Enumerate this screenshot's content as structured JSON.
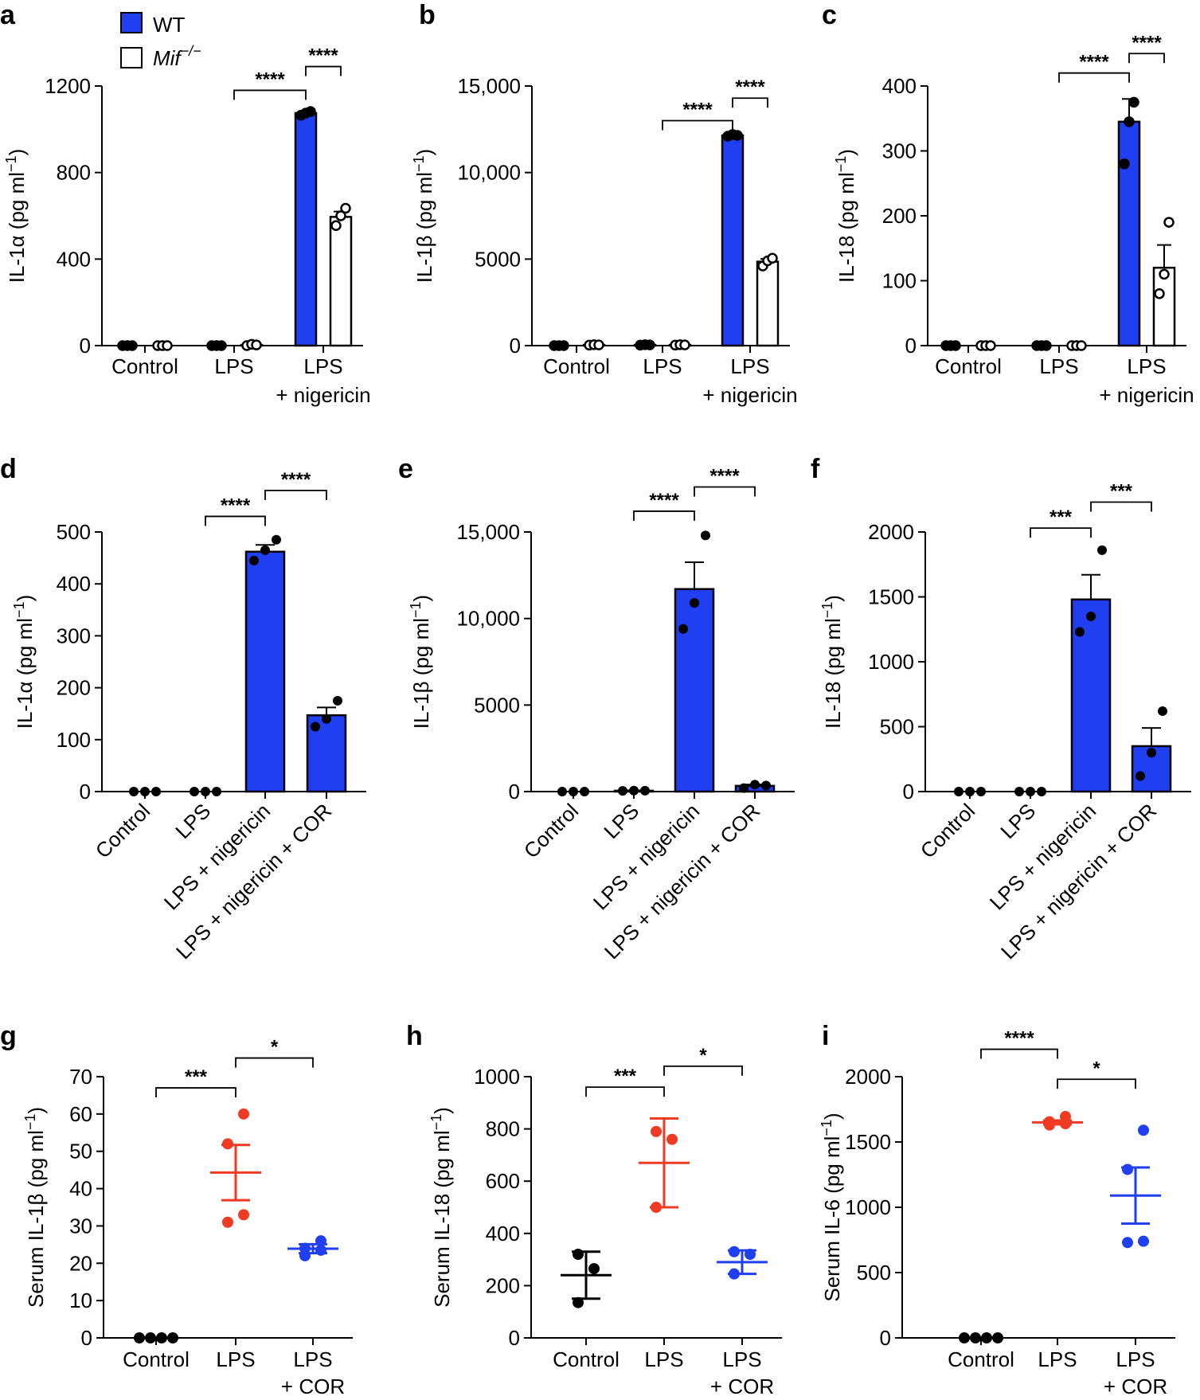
{
  "legend": {
    "entries": [
      {
        "label": "WT",
        "fill": "#1f3ff0"
      },
      {
        "label": "Mif",
        "superscript": "−/−",
        "fill": "#ffffff"
      }
    ]
  },
  "colors": {
    "blue": "#1f3ff0",
    "red": "#ef3a24",
    "black": "#000000"
  },
  "chart_data": [
    {
      "panel": "a",
      "type": "bar",
      "ylabel": "IL-1α (pg ml",
      "ylabel_sup": "−1",
      "ylabel_end": ")",
      "ylim": [
        0,
        1200
      ],
      "yticks": [
        0,
        400,
        800,
        1200
      ],
      "ytick_labels": [
        "0",
        "400",
        "800",
        "1200"
      ],
      "groups": [
        {
          "label": [
            "Control"
          ],
          "pair": true
        },
        {
          "label": [
            "LPS"
          ],
          "pair": true
        },
        {
          "label": [
            "LPS",
            "+ nigericin"
          ],
          "pair": true
        }
      ],
      "series": [
        {
          "name": "WT",
          "values": [
            0,
            0,
            1075
          ],
          "errors": [
            0,
            0,
            6
          ],
          "points": [
            [
              0,
              0,
              0
            ],
            [
              0,
              0,
              0
            ],
            [
              1065,
              1075,
              1082
            ]
          ]
        },
        {
          "name": "Mif−/−",
          "values": [
            0,
            3,
            595
          ],
          "errors": [
            0,
            2,
            25
          ],
          "points": [
            [
              0,
              0,
              0
            ],
            [
              0,
              6,
              3
            ],
            [
              555,
              600,
              635
            ]
          ]
        }
      ],
      "significance": [
        {
          "from": [
            1,
            0.5
          ],
          "to": [
            2,
            0
          ],
          "label": "****",
          "level": 1180
        },
        {
          "from": [
            2,
            0
          ],
          "to": [
            2,
            1
          ],
          "label": "****",
          "level": 1290
        }
      ]
    },
    {
      "panel": "b",
      "type": "bar",
      "ylabel": "IL-1β (pg ml",
      "ylabel_sup": "−1",
      "ylabel_end": ")",
      "ylim": [
        0,
        15000
      ],
      "yticks": [
        0,
        5000,
        10000,
        15000
      ],
      "ytick_labels": [
        "0",
        "5000",
        "10,000",
        "15,000"
      ],
      "groups": [
        {
          "label": [
            "Control"
          ],
          "pair": true
        },
        {
          "label": [
            "LPS"
          ],
          "pair": true
        },
        {
          "label": [
            "LPS",
            "+ nigericin"
          ],
          "pair": true
        }
      ],
      "series": [
        {
          "name": "WT",
          "values": [
            0,
            40,
            12150
          ],
          "errors": [
            0,
            10,
            60
          ],
          "points": [
            [
              0,
              0,
              0
            ],
            [
              30,
              50,
              40
            ],
            [
              12100,
              12200,
              12150
            ]
          ]
        },
        {
          "name": "Mif−/−",
          "values": [
            40,
            40,
            4850
          ],
          "errors": [
            0,
            10,
            160
          ],
          "points": [
            [
              30,
              50,
              40
            ],
            [
              30,
              50,
              40
            ],
            [
              4600,
              4900,
              5050
            ]
          ]
        }
      ],
      "significance": [
        {
          "from": [
            1,
            0.5
          ],
          "to": [
            2,
            0
          ],
          "label": "****",
          "level": 13000
        },
        {
          "from": [
            2,
            0
          ],
          "to": [
            2,
            1
          ],
          "label": "****",
          "level": 14300
        }
      ]
    },
    {
      "panel": "c",
      "type": "bar",
      "ylabel": "IL-18 (pg ml",
      "ylabel_sup": "−1",
      "ylabel_end": ")",
      "ylim": [
        0,
        400
      ],
      "yticks": [
        0,
        100,
        200,
        300,
        400
      ],
      "ytick_labels": [
        "0",
        "100",
        "200",
        "300",
        "400"
      ],
      "groups": [
        {
          "label": [
            "Control"
          ],
          "pair": true
        },
        {
          "label": [
            "LPS"
          ],
          "pair": true
        },
        {
          "label": [
            "LPS",
            "+ nigericin"
          ],
          "pair": true
        }
      ],
      "series": [
        {
          "name": "WT",
          "values": [
            0,
            0,
            345
          ],
          "errors": [
            0,
            0,
            35
          ],
          "points": [
            [
              0,
              0,
              0
            ],
            [
              0,
              0,
              0
            ],
            [
              280,
              345,
              375
            ]
          ]
        },
        {
          "name": "Mif−/−",
          "values": [
            0,
            0,
            120
          ],
          "errors": [
            0,
            0,
            35
          ],
          "points": [
            [
              0,
              0,
              0
            ],
            [
              0,
              0,
              0
            ],
            [
              80,
              110,
              190
            ]
          ]
        }
      ],
      "significance": [
        {
          "from": [
            1,
            0.5
          ],
          "to": [
            2,
            0
          ],
          "label": "****",
          "level": 420
        },
        {
          "from": [
            2,
            0
          ],
          "to": [
            2,
            1
          ],
          "label": "****",
          "level": 450
        }
      ]
    },
    {
      "panel": "d",
      "type": "bar",
      "ylabel": "IL-1α (pg ml",
      "ylabel_sup": "−1",
      "ylabel_end": ")",
      "ylim": [
        0,
        500
      ],
      "yticks": [
        0,
        100,
        200,
        300,
        400,
        500
      ],
      "ytick_labels": [
        "0",
        "100",
        "200",
        "300",
        "400",
        "500"
      ],
      "categories": [
        "Control",
        "LPS",
        "LPS + nigericin",
        "LPS + nigericin + COR"
      ],
      "values": [
        0,
        0,
        462,
        147
      ],
      "errors": [
        0,
        0,
        13,
        15
      ],
      "points": [
        [
          0,
          0,
          0
        ],
        [
          0,
          0,
          0
        ],
        [
          445,
          465,
          485
        ],
        [
          125,
          140,
          175
        ]
      ],
      "significance": [
        {
          "from": 1,
          "to": 2,
          "label": "****",
          "level": 530
        },
        {
          "from": 2,
          "to": 3,
          "label": "****",
          "level": 580
        }
      ]
    },
    {
      "panel": "e",
      "type": "bar",
      "ylabel": "IL-1β (pg ml",
      "ylabel_sup": "−1",
      "ylabel_end": ")",
      "ylim": [
        0,
        15000
      ],
      "yticks": [
        0,
        5000,
        10000,
        15000
      ],
      "ytick_labels": [
        "0",
        "5000",
        "10,000",
        "15,000"
      ],
      "categories": [
        "Control",
        "LPS",
        "LPS + nigericin",
        "LPS + nigericin + COR"
      ],
      "values": [
        0,
        50,
        11700,
        330
      ],
      "errors": [
        0,
        20,
        1550,
        80
      ],
      "points": [
        [
          0,
          0,
          0
        ],
        [
          40,
          60,
          50
        ],
        [
          9400,
          10900,
          14800
        ],
        [
          200,
          400,
          350
        ]
      ],
      "significance": [
        {
          "from": 1,
          "to": 2,
          "label": "****",
          "level": 16200
        },
        {
          "from": 2,
          "to": 3,
          "label": "****",
          "level": 17600
        }
      ]
    },
    {
      "panel": "f",
      "type": "bar",
      "ylabel": "IL-18 (pg ml",
      "ylabel_sup": "−1",
      "ylabel_end": ")",
      "ylim": [
        0,
        2000
      ],
      "yticks": [
        0,
        500,
        1000,
        1500,
        2000
      ],
      "ytick_labels": [
        "0",
        "500",
        "1000",
        "1500",
        "2000"
      ],
      "categories": [
        "Control",
        "LPS",
        "LPS + nigericin",
        "LPS + nigericin + COR"
      ],
      "values": [
        0,
        0,
        1480,
        350
      ],
      "errors": [
        0,
        0,
        190,
        140
      ],
      "points": [
        [
          0,
          0,
          0
        ],
        [
          0,
          0,
          0
        ],
        [
          1230,
          1350,
          1860
        ],
        [
          120,
          300,
          620
        ]
      ],
      "significance": [
        {
          "from": 1,
          "to": 2,
          "label": "***",
          "level": 2030
        },
        {
          "from": 2,
          "to": 3,
          "label": "***",
          "level": 2230
        }
      ]
    },
    {
      "panel": "g",
      "type": "scatter",
      "ylabel": "Serum IL-1β (pg ml",
      "ylabel_sup": "−1",
      "ylabel_end": ")",
      "ylim": [
        0,
        70
      ],
      "yticks": [
        0,
        10,
        20,
        30,
        40,
        50,
        60,
        70
      ],
      "ytick_labels": [
        "0",
        "10",
        "20",
        "30",
        "40",
        "50",
        "60",
        "70"
      ],
      "categories": [
        [
          "Control"
        ],
        [
          "LPS"
        ],
        [
          "LPS",
          "+ COR"
        ]
      ],
      "colors": [
        "black",
        "red",
        "blue"
      ],
      "means": [
        0,
        44.3,
        23.9
      ],
      "sem": [
        0,
        7.4,
        1.2
      ],
      "points": [
        [
          0,
          0,
          0,
          0
        ],
        [
          31,
          33,
          52,
          60
        ],
        [
          22,
          23.5,
          24,
          26
        ]
      ],
      "significance": [
        {
          "from": 0,
          "to": 1,
          "label": "***",
          "level": 67
        },
        {
          "from": 1,
          "to": 2,
          "label": "*",
          "level": 75
        }
      ]
    },
    {
      "panel": "h",
      "type": "scatter",
      "ylabel": "Serum IL-18 (pg ml",
      "ylabel_sup": "−1",
      "ylabel_end": ")",
      "ylim": [
        0,
        1000
      ],
      "yticks": [
        0,
        200,
        400,
        600,
        800,
        1000
      ],
      "ytick_labels": [
        "0",
        "200",
        "400",
        "600",
        "800",
        "1000"
      ],
      "categories": [
        [
          "Control"
        ],
        [
          "LPS"
        ],
        [
          "LPS",
          "+ COR"
        ]
      ],
      "colors": [
        "black",
        "red",
        "blue"
      ],
      "means": [
        240,
        670,
        290
      ],
      "sem": [
        90,
        170,
        45
      ],
      "points": [
        [
          135,
          265,
          320
        ],
        [
          500,
          760,
          790
        ],
        [
          245,
          320,
          330
        ]
      ],
      "significance": [
        {
          "from": 0,
          "to": 1,
          "label": "***",
          "level": 960
        },
        {
          "from": 1,
          "to": 2,
          "label": "*",
          "level": 1040
        }
      ]
    },
    {
      "panel": "i",
      "type": "scatter",
      "ylabel": "Serum IL-6 (pg ml",
      "ylabel_sup": "−1",
      "ylabel_end": ")",
      "ylim": [
        0,
        2000
      ],
      "yticks": [
        0,
        500,
        1000,
        1500,
        2000
      ],
      "ytick_labels": [
        "0",
        "500",
        "1000",
        "1500",
        "2000"
      ],
      "categories": [
        [
          "Control"
        ],
        [
          "LPS"
        ],
        [
          "LPS",
          "+ COR"
        ]
      ],
      "colors": [
        "black",
        "red",
        "blue"
      ],
      "means": [
        0,
        1650,
        1090
      ],
      "sem": [
        0,
        15,
        215
      ],
      "points": [
        [
          0,
          0,
          0,
          0
        ],
        [
          1630,
          1640,
          1655,
          1695
        ],
        [
          730,
          740,
          1290,
          1590
        ]
      ],
      "significance": [
        {
          "from": 0,
          "to": 1,
          "label": "****",
          "level": 2210
        },
        {
          "from": 1,
          "to": 2,
          "label": "*",
          "level": 1980
        }
      ]
    }
  ]
}
